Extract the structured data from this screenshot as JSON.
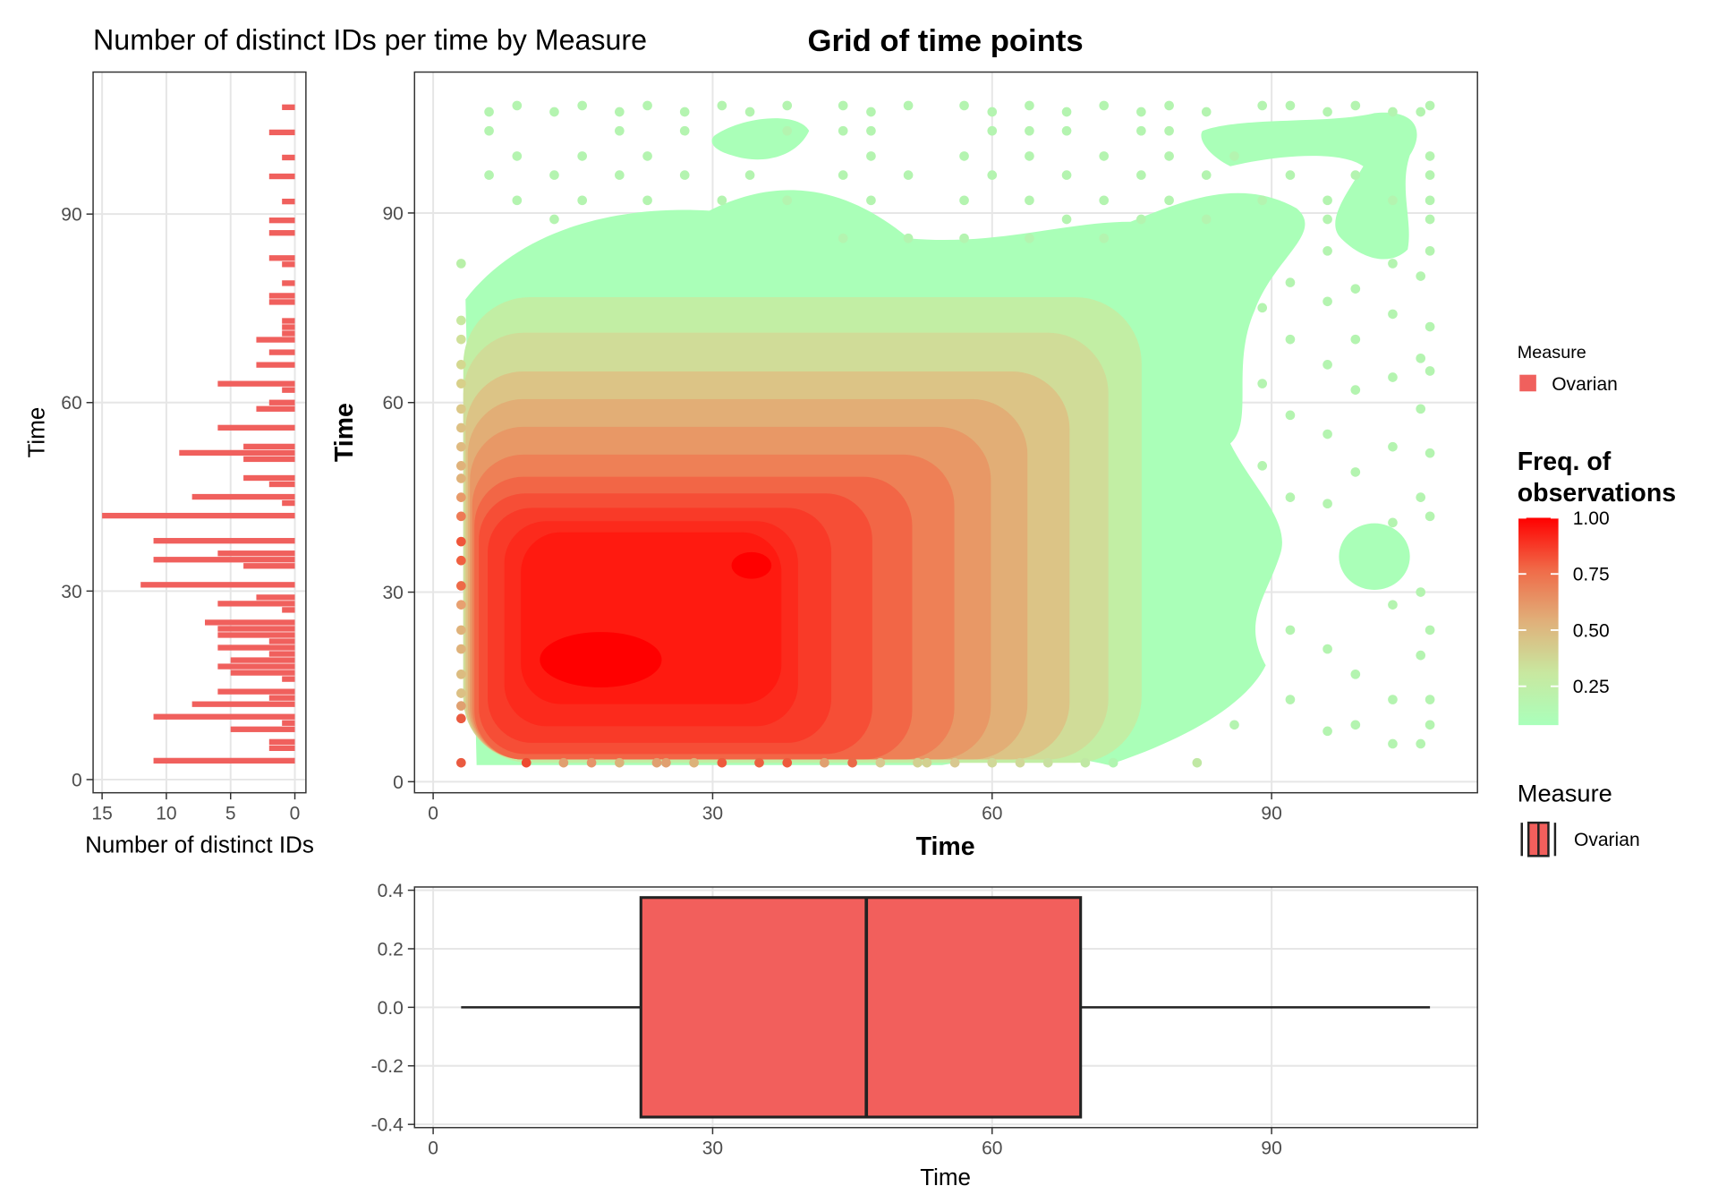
{
  "chart_data": [
    {
      "type": "hbar",
      "title": "Number of distinct IDs per time by Measure",
      "x_label": "Number of distinct IDs",
      "y_label": "Time",
      "color": "#f0605d",
      "y": [
        107,
        103,
        99,
        96,
        92,
        89,
        87,
        83,
        82,
        79,
        77,
        76,
        73,
        72,
        71,
        70,
        68,
        66,
        63,
        62,
        60,
        59,
        56,
        53,
        52,
        51,
        48,
        47,
        45,
        44,
        42,
        38,
        36,
        35,
        34,
        31,
        29,
        28,
        27,
        25,
        24,
        23,
        22,
        21,
        20,
        19,
        18,
        17,
        16,
        14,
        13,
        12,
        10,
        9,
        8,
        6,
        5,
        3
      ],
      "values": [
        1,
        2,
        1,
        2,
        1,
        2,
        2,
        2,
        1,
        1,
        2,
        2,
        1,
        1,
        1,
        3,
        2,
        3,
        6,
        1,
        2,
        3,
        6,
        4,
        9,
        4,
        4,
        2,
        8,
        1,
        15,
        11,
        6,
        11,
        4,
        12,
        3,
        6,
        1,
        7,
        6,
        6,
        2,
        6,
        2,
        5,
        6,
        5,
        1,
        6,
        2,
        8,
        11,
        1,
        5,
        2,
        2,
        11
      ],
      "xlim": [
        15.7,
        -0.86
      ],
      "ylim": [
        -2.1,
        112.6
      ],
      "xticks": [
        15,
        10,
        5,
        0
      ],
      "yticks": [
        0,
        30,
        60,
        90
      ]
    },
    {
      "type": "scatter",
      "title": "Grid of time points",
      "x_label": "Time",
      "y_label": "Time",
      "xlim": [
        -2,
        112.1
      ],
      "ylim": [
        -1.75,
        112.3
      ],
      "xticks": [
        0,
        30,
        60,
        90
      ],
      "yticks": [
        0,
        30,
        60,
        90
      ],
      "series": [
        {
          "x": [
            3,
            3,
            3,
            3,
            3,
            3,
            3,
            3,
            3,
            3,
            3,
            3,
            3,
            3,
            3,
            3,
            3,
            3,
            3,
            3,
            3,
            3,
            3,
            10,
            14,
            17,
            20,
            24,
            25,
            28,
            31,
            35,
            38,
            42,
            45,
            48,
            52,
            53,
            56,
            60,
            63,
            66,
            70,
            73,
            82
          ],
          "y": [
            82,
            73,
            70,
            66,
            63,
            59,
            56,
            53,
            50,
            48,
            45,
            42,
            38,
            35,
            31,
            28,
            24,
            21,
            17,
            14,
            12,
            10,
            3,
            3,
            3,
            3,
            3,
            3,
            3,
            3,
            3,
            3,
            3,
            3,
            3,
            3,
            3,
            3,
            3,
            3,
            3,
            3,
            3,
            3,
            3
          ],
          "colors": [
            "#b8f0a8",
            "#c8e8a0",
            "#d0e09a",
            "#d4d890",
            "#d8d08a",
            "#dcc888",
            "#ddc084",
            "#dfba80",
            "#e0b27a",
            "#e0b27a",
            "#e89a6a",
            "#ee7a55",
            "#f0553a",
            "#f06040",
            "#ee6a48",
            "#e8a070",
            "#dfb27a",
            "#dfb27a",
            "#dcbc80",
            "#dcc084",
            "#e0a070",
            "#ea5a40",
            "#ea5a40",
            "#ee4a30",
            "#e0a070",
            "#e6946a",
            "#dcb27a",
            "#e0a070",
            "#e0a070",
            "#dcb27a",
            "#ee5a3c",
            "#ec6040",
            "#ee5a3c",
            "#e0a070",
            "#ea6a48",
            "#d8c890",
            "#d2d090",
            "#d2d090",
            "#d8c890",
            "#d0d898",
            "#d0d898",
            "#c8e0a0",
            "#c0e8a4",
            "#b0f5b0",
            "#c0e8a4"
          ]
        },
        {
          "x": [
            6,
            13,
            20,
            27,
            34,
            47,
            60,
            68,
            76,
            83,
            96,
            103,
            106,
            9,
            16,
            23,
            31,
            38,
            44,
            51,
            57,
            64,
            72,
            79,
            89,
            92,
            99,
            107,
            6,
            20,
            27,
            38,
            44,
            47,
            60,
            64,
            68,
            76,
            79,
            9,
            16,
            23,
            47,
            57,
            64,
            72,
            79,
            86,
            107,
            6,
            13,
            20,
            27,
            34,
            44,
            51,
            60,
            68,
            76,
            83,
            92,
            99,
            107,
            9,
            16,
            23,
            31,
            38,
            47,
            57,
            64,
            72,
            79,
            89,
            96,
            103,
            107,
            13,
            68,
            76,
            83,
            96,
            107,
            44,
            51,
            57,
            64,
            72,
            92,
            92,
            92,
            92,
            92,
            92,
            96,
            96,
            96,
            96,
            96,
            96,
            96,
            99,
            99,
            99,
            99,
            99,
            99,
            103,
            103,
            103,
            103,
            103,
            103,
            103,
            103,
            106,
            106,
            106,
            106,
            106,
            106,
            106,
            107,
            107,
            107,
            107,
            107,
            107,
            107,
            107,
            89,
            89,
            89,
            86
          ],
          "y": [
            106,
            106,
            106,
            106,
            106,
            106,
            106,
            106,
            106,
            106,
            106,
            106,
            106,
            107,
            107,
            107,
            107,
            107,
            107,
            107,
            107,
            107,
            107,
            107,
            107,
            107,
            107,
            107,
            103,
            103,
            103,
            103,
            103,
            103,
            103,
            103,
            103,
            103,
            103,
            99,
            99,
            99,
            99,
            99,
            99,
            99,
            99,
            99,
            99,
            96,
            96,
            96,
            96,
            96,
            96,
            96,
            96,
            96,
            96,
            96,
            96,
            96,
            96,
            92,
            92,
            92,
            92,
            92,
            92,
            92,
            92,
            92,
            92,
            92,
            92,
            92,
            92,
            89,
            89,
            89,
            89,
            89,
            89,
            86,
            86,
            86,
            86,
            86,
            79,
            70,
            58,
            45,
            24,
            13,
            84,
            76,
            66,
            55,
            44,
            21,
            8,
            78,
            70,
            62,
            49,
            17,
            9,
            82,
            74,
            64,
            53,
            41,
            28,
            13,
            6,
            80,
            67,
            59,
            45,
            30,
            20,
            6,
            84,
            72,
            65,
            52,
            42,
            24,
            13,
            9,
            75,
            63,
            50,
            9
          ],
          "color": "#b4f4b0"
        }
      ],
      "legends": [
        {
          "title": "Measure",
          "label": "Ovarian",
          "color": "#f0605d"
        },
        {
          "title_lines": [
            "Freq. of",
            "observations"
          ],
          "limits": [
            0.077,
            1
          ],
          "ticks": [
            {
              "value": 1,
              "label": "1.00"
            },
            0.75,
            {
              "value": 0.5,
              "label": "0.50"
            },
            0.25
          ],
          "colors": [
            "#aaffbb",
            "#c8e8a0",
            "#e0b07a",
            "#f06a48",
            "#ff0000"
          ]
        }
      ]
    },
    {
      "type": "box",
      "x_label": "Time",
      "xlim": [
        -2,
        112.1
      ],
      "ylim": [
        -0.411,
        0.411
      ],
      "xticks": [
        0,
        30,
        60,
        90
      ],
      "yticks": [
        0.4,
        0.2,
        {
          "value": 0,
          "label": "0.0"
        },
        -0.2,
        -0.4
      ],
      "box": {
        "min": 3,
        "q1": 22.3,
        "median": 46.5,
        "q3": 69.5,
        "max": 107
      },
      "box_y": [
        -0.375,
        0.375
      ],
      "color": "#f25f5c",
      "legend": {
        "title": "Measure",
        "label": "Ovarian"
      }
    }
  ]
}
